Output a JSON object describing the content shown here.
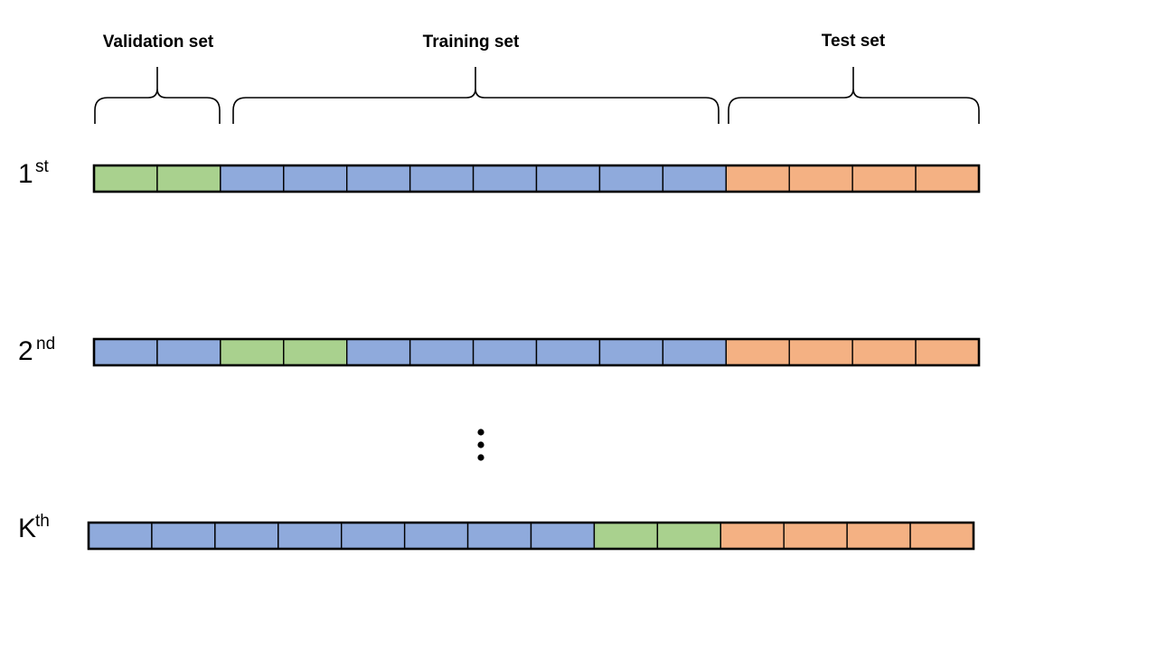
{
  "diagram": {
    "set_labels": {
      "validation": "Validation set",
      "training": "Training set",
      "test": "Test set"
    },
    "colors": {
      "validation": "#a9d18e",
      "training": "#8faadc",
      "test": "#f4b183",
      "outline": "#000000"
    },
    "folds": [
      {
        "number": "1",
        "suffix": "st",
        "cells": [
          "validation",
          "validation",
          "training",
          "training",
          "training",
          "training",
          "training",
          "training",
          "training",
          "training",
          "test",
          "test",
          "test",
          "test"
        ]
      },
      {
        "number": "2",
        "suffix": "nd",
        "cells": [
          "training",
          "training",
          "validation",
          "validation",
          "training",
          "training",
          "training",
          "training",
          "training",
          "training",
          "test",
          "test",
          "test",
          "test"
        ]
      },
      {
        "number": "K",
        "suffix": "th",
        "cells": [
          "training",
          "training",
          "training",
          "training",
          "training",
          "training",
          "training",
          "training",
          "validation",
          "validation",
          "test",
          "test",
          "test",
          "test"
        ]
      }
    ]
  }
}
